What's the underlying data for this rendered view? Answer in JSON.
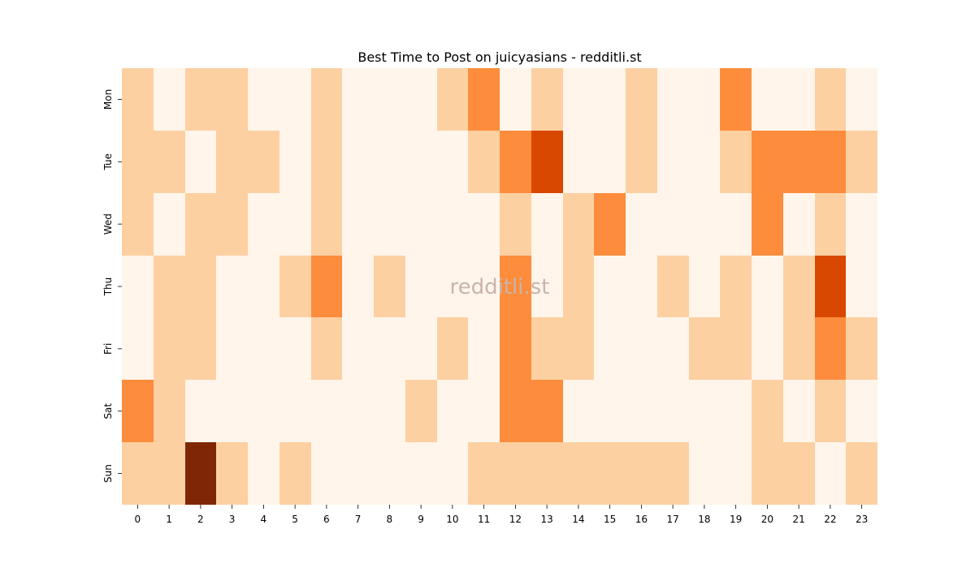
{
  "chart_data": {
    "type": "heatmap",
    "title": "Best Time to Post on juicyasians - redditli.st",
    "xlabel": "",
    "ylabel": "",
    "x_categories": [
      "0",
      "1",
      "2",
      "3",
      "4",
      "5",
      "6",
      "7",
      "8",
      "9",
      "10",
      "11",
      "12",
      "13",
      "14",
      "15",
      "16",
      "17",
      "18",
      "19",
      "20",
      "21",
      "22",
      "23"
    ],
    "y_categories": [
      "Mon",
      "Tue",
      "Wed",
      "Thu",
      "Fri",
      "Sat",
      "Sun"
    ],
    "values": [
      [
        1,
        0,
        1,
        1,
        0,
        0,
        1,
        0,
        0,
        0,
        1,
        2,
        0,
        1,
        0,
        0,
        1,
        0,
        0,
        2,
        0,
        0,
        1,
        0
      ],
      [
        1,
        1,
        0,
        1,
        1,
        0,
        1,
        0,
        0,
        0,
        0,
        1,
        2,
        3,
        0,
        0,
        1,
        0,
        0,
        1,
        2,
        2,
        2,
        1
      ],
      [
        1,
        0,
        1,
        1,
        0,
        0,
        1,
        0,
        0,
        0,
        0,
        0,
        1,
        0,
        1,
        2,
        0,
        0,
        0,
        0,
        2,
        0,
        1,
        0
      ],
      [
        0,
        1,
        1,
        0,
        0,
        1,
        2,
        0,
        1,
        0,
        0,
        0,
        2,
        0,
        1,
        0,
        0,
        1,
        0,
        1,
        0,
        1,
        3,
        0
      ],
      [
        0,
        1,
        1,
        0,
        0,
        0,
        1,
        0,
        0,
        0,
        1,
        0,
        2,
        1,
        1,
        0,
        0,
        0,
        1,
        1,
        0,
        1,
        2,
        1
      ],
      [
        2,
        1,
        0,
        0,
        0,
        0,
        0,
        0,
        0,
        1,
        0,
        0,
        2,
        2,
        0,
        0,
        0,
        0,
        0,
        0,
        1,
        0,
        1,
        0
      ],
      [
        1,
        1,
        4,
        1,
        0,
        1,
        0,
        0,
        0,
        0,
        0,
        1,
        1,
        1,
        1,
        1,
        1,
        1,
        0,
        0,
        1,
        1,
        0,
        1
      ]
    ],
    "value_range": [
      0,
      4
    ],
    "colormap": "Oranges",
    "colors": [
      "#fff5eb",
      "#fdd0a2",
      "#fd8d3c",
      "#d94801",
      "#7f2704"
    ],
    "colorbar": false,
    "grid": false,
    "watermark": "redditli.st",
    "watermark_color": "#c9b4ac"
  }
}
